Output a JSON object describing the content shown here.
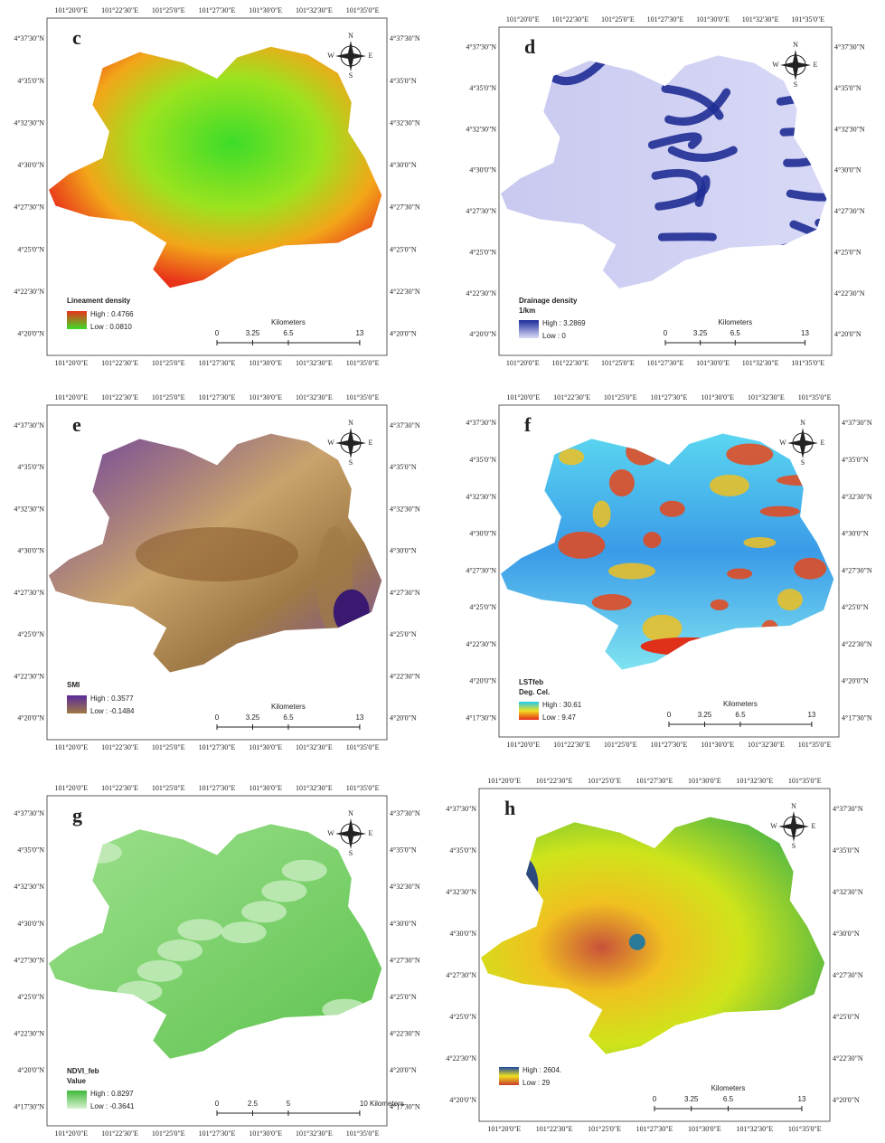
{
  "compass": [
    "N",
    "E",
    "S",
    "W"
  ],
  "panels": [
    {
      "letter": "c",
      "legend_title": "Lineament density",
      "high": "High : 0.4766",
      "low": "Low : 0.0810",
      "scale": [
        "0",
        "3.25",
        "6.5",
        "13"
      ],
      "scale_unit": "Kilometers",
      "lon": [
        "101°20'0\"E",
        "101°22'30\"E",
        "101°25'0\"E",
        "101°27'30\"E",
        "101°30'0\"E",
        "101°32'30\"E",
        "101°35'0\"E"
      ],
      "lat": [
        "4°37'30\"N",
        "4°35'0\"N",
        "4°32'30\"N",
        "4°30'0\"N",
        "4°27'30\"N",
        "4°25'0\"N",
        "4°22'30\"N",
        "4°20'0\"N"
      ]
    },
    {
      "letter": "d",
      "legend_title": "Drainage density",
      "legend_unit": "1/km",
      "high": "High : 3.2869",
      "low": "Low : 0",
      "scale": [
        "0",
        "3.25",
        "6.5",
        "13"
      ],
      "scale_unit": "Kilometers",
      "lon": [
        "101°20'0\"E",
        "101°22'30\"E",
        "101°25'0\"E",
        "101°27'30\"E",
        "101°30'0\"E",
        "101°32'30\"E",
        "101°35'0\"E"
      ],
      "lat": [
        "4°37'30\"N",
        "4°35'0\"N",
        "4°32'30\"N",
        "4°30'0\"N",
        "4°27'30\"N",
        "4°25'0\"N",
        "4°22'30\"N",
        "4°20'0\"N"
      ]
    },
    {
      "letter": "e",
      "legend_title": "SMI",
      "high": "High : 0.3577",
      "low": "Low : -0.1484",
      "scale": [
        "0",
        "3.25",
        "6.5",
        "13"
      ],
      "scale_unit": "Kilometers",
      "lon": [
        "101°20'0\"E",
        "101°22'30\"E",
        "101°25'0\"E",
        "101°27'30\"E",
        "101°30'0\"E",
        "101°32'30\"E",
        "101°35'0\"E"
      ],
      "lat": [
        "4°37'30\"N",
        "4°35'0\"N",
        "4°32'30\"N",
        "4°30'0\"N",
        "4°27'30\"N",
        "4°25'0\"N",
        "4°22'30\"N",
        "4°20'0\"N"
      ]
    },
    {
      "letter": "f",
      "legend_title": "LSTfeb",
      "legend_unit": "Deg. Cel.",
      "high": "High : 30.61",
      "low": "Low : 9.47",
      "scale": [
        "0",
        "3.25",
        "6.5",
        "13"
      ],
      "scale_unit": "Kilometers",
      "lon": [
        "101°20'0\"E",
        "101°22'30\"E",
        "101°25'0\"E",
        "101°27'30\"E",
        "101°30'0\"E",
        "101°32'30\"E",
        "101°35'0\"E"
      ],
      "lat": [
        "4°37'30\"N",
        "4°35'0\"N",
        "4°32'30\"N",
        "4°30'0\"N",
        "4°27'30\"N",
        "4°25'0\"N",
        "4°22'30\"N",
        "4°20'0\"N",
        "4°17'30\"N"
      ]
    },
    {
      "letter": "g",
      "legend_title": "NDVI_feb",
      "legend_unit": "Value",
      "high": "High : 0.8297",
      "low": "Low : -0.3641",
      "scale": [
        "0",
        "2.5",
        "5",
        "10 Kilometers"
      ],
      "lon": [
        "101°20'0\"E",
        "101°22'30\"E",
        "101°25'0\"E",
        "101°27'30\"E",
        "101°30'0\"E",
        "101°32'30\"E",
        "101°35'0\"E"
      ],
      "lat": [
        "4°37'30\"N",
        "4°35'0\"N",
        "4°32'30\"N",
        "4°30'0\"N",
        "4°27'30\"N",
        "4°25'0\"N",
        "4°22'30\"N",
        "4°20'0\"N",
        "4°17'30\"N"
      ]
    },
    {
      "letter": "h",
      "high": "High : 2604.",
      "low": "Low : 29",
      "scale": [
        "0",
        "3.25",
        "6.5",
        "13"
      ],
      "scale_unit": "Kilometers",
      "lon": [
        "101°20'0\"E",
        "101°22'30\"E",
        "101°25'0\"E",
        "101°27'30\"E",
        "101°30'0\"E",
        "101°32'30\"E",
        "101°35'0\"E"
      ],
      "lat": [
        "4°37'30\"N",
        "4°35'0\"N",
        "4°32'30\"N",
        "4°30'0\"N",
        "4°27'30\"N",
        "4°25'0\"N",
        "4°22'30\"N",
        "4°20'0\"N"
      ]
    }
  ]
}
